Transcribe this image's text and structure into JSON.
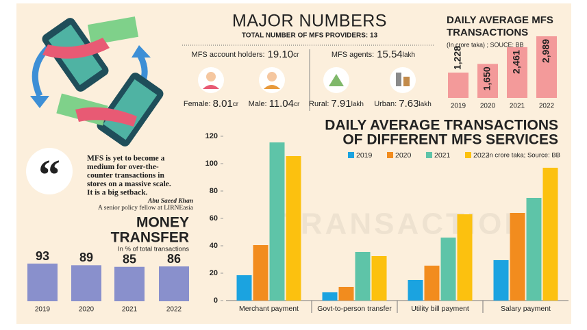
{
  "chart_data": [
    {
      "type": "bar",
      "title": "DAILY AVERAGE MFS TRANSACTIONS",
      "subtitle": "(In crore taka) ; SOUCE: BB",
      "categories": [
        "2019",
        "2020",
        "2021",
        "2022"
      ],
      "values": [
        1228,
        1650,
        2461,
        2989
      ],
      "value_labels": [
        "1,228",
        "1,650",
        "2,461",
        "2,989"
      ],
      "color": "#f39a9a"
    },
    {
      "type": "bar",
      "title": [
        "DAILY AVERAGE TRANSACTIONS",
        "OF DIFFERENT MFS SERVICES"
      ],
      "subtitle": "In crore taka; Source: BB",
      "categories": [
        "Merchant payment",
        "Govt-to-person transfer",
        "Utility bill payment",
        "Salary payment"
      ],
      "series": [
        {
          "name": "2019",
          "color": "#1ba3e0",
          "values": [
            18.5,
            6,
            15,
            29.5
          ]
        },
        {
          "name": "2020",
          "color": "#f28c1e",
          "values": [
            40.5,
            10,
            25.5,
            64
          ]
        },
        {
          "name": "2021",
          "color": "#5ec4a8",
          "values": [
            115.5,
            35.5,
            46,
            75
          ]
        },
        {
          "name": "2022",
          "color": "#fcc10f",
          "values": [
            105.5,
            32.5,
            63,
            97
          ]
        }
      ],
      "ylim": [
        0,
        120
      ],
      "yticks": [
        0,
        20,
        40,
        60,
        80,
        100,
        120
      ],
      "watermark": "TRANSACTION"
    },
    {
      "type": "bar",
      "title": [
        "MONEY",
        "TRANSFER"
      ],
      "subtitle": "In % of total transactions",
      "categories": [
        "2019",
        "2020",
        "2021",
        "2022"
      ],
      "values": [
        93,
        89,
        85,
        86
      ],
      "color": "#8990cc"
    }
  ],
  "major_numbers": {
    "title": "MAJOR NUMBERS",
    "subtitle": "TOTAL NUMBER OF MFS PROVIDERS: 13",
    "groups": [
      {
        "label": "MFS account holders:",
        "value": "19.10",
        "unit": "cr",
        "items": [
          {
            "label": "Female:",
            "value": "8.01",
            "unit": "cr"
          },
          {
            "label": "Male:",
            "value": "11.04",
            "unit": "cr"
          }
        ]
      },
      {
        "label": "MFS agents:",
        "value": "15.54",
        "unit": "lakh",
        "items": [
          {
            "label": "Rural:",
            "value": "7.91",
            "unit": "lakh"
          },
          {
            "label": "Urban:",
            "value": "7.63",
            "unit": "lakh"
          }
        ]
      }
    ]
  },
  "quote": {
    "lines": [
      "MFS is yet to become a",
      "medium for over-the-",
      "counter transactions in",
      "stores on a massive scale.",
      "It is a big setback."
    ],
    "author": "Abu Saeed Khan",
    "role": "A senior policy fellow at LIRNEasia"
  }
}
